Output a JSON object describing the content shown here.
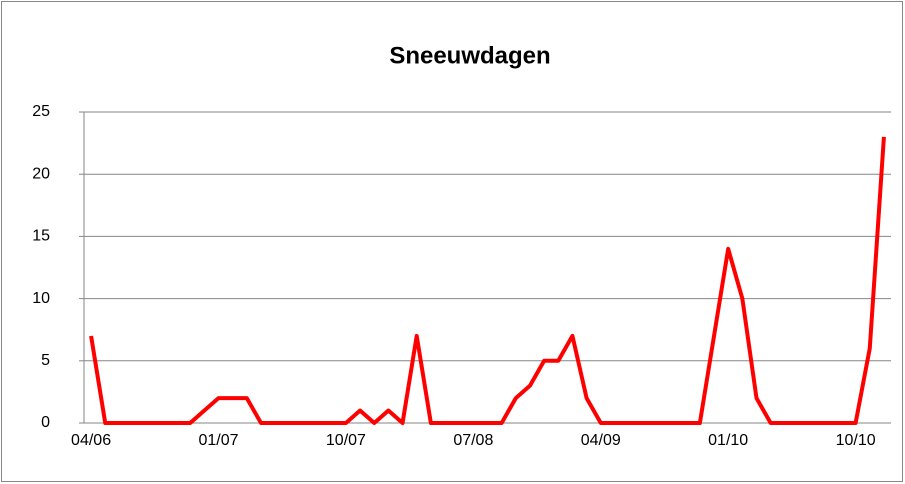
{
  "chart_data": {
    "type": "line",
    "title": "Sneeuwdagen",
    "categories": [
      "04/06",
      null,
      null,
      null,
      null,
      null,
      null,
      null,
      null,
      "01/07",
      null,
      null,
      null,
      null,
      null,
      null,
      null,
      null,
      "10/07",
      null,
      null,
      null,
      null,
      null,
      null,
      null,
      null,
      "07/08",
      null,
      null,
      null,
      null,
      null,
      null,
      null,
      null,
      "04/09",
      null,
      null,
      null,
      null,
      null,
      null,
      null,
      null,
      "01/10",
      null,
      null,
      null,
      null,
      null,
      null,
      null,
      null,
      "10/10",
      null,
      null
    ],
    "series": [
      {
        "name": "Sneeuwdagen",
        "color": "#ff0000",
        "values": [
          7,
          0,
          0,
          0,
          0,
          0,
          0,
          0,
          1,
          2,
          2,
          2,
          0,
          0,
          0,
          0,
          0,
          0,
          0,
          1,
          0,
          1,
          0,
          7,
          0,
          0,
          0,
          0,
          0,
          0,
          2,
          3,
          5,
          5,
          7,
          2,
          0,
          0,
          0,
          0,
          0,
          0,
          0,
          0,
          7,
          14,
          10,
          2,
          0,
          0,
          0,
          0,
          0,
          0,
          0,
          6,
          23
        ]
      }
    ],
    "ylim": [
      0,
      25
    ],
    "yticks": [
      0,
      5,
      10,
      15,
      20,
      25
    ],
    "grid": true
  }
}
